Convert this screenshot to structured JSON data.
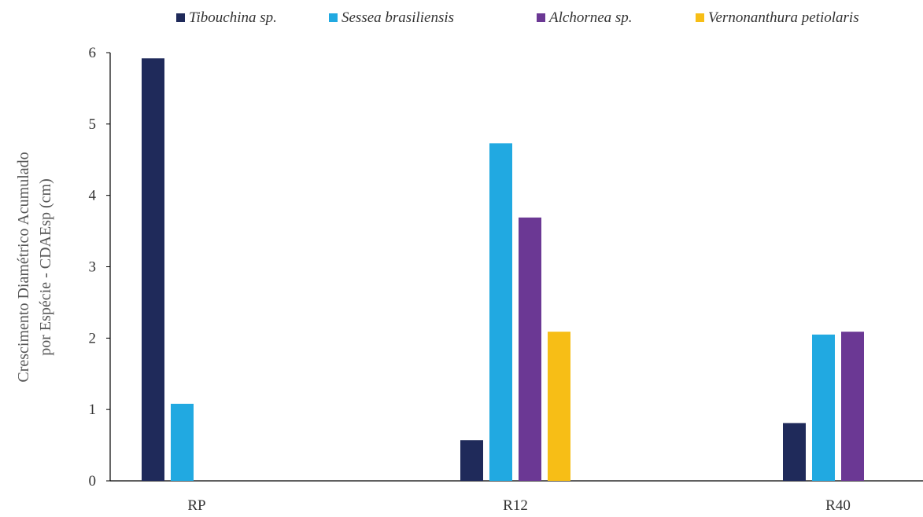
{
  "chart_data": {
    "type": "bar",
    "title": "",
    "xlabel": "",
    "ylabel_lines": [
      "Crescimento Diamétrico Acumulado",
      "por Espécie - CDAEsp (cm)"
    ],
    "ylim": [
      0,
      6
    ],
    "yticks": [
      0,
      1,
      2,
      3,
      4,
      5,
      6
    ],
    "categories": [
      "RP",
      "R12",
      "R40"
    ],
    "legend_position": "top",
    "grid": false,
    "series": [
      {
        "name": "Tibouchina sp.",
        "color": "#1f2a5a",
        "values": [
          5.92,
          0.57,
          0.81
        ]
      },
      {
        "name": "Sessea brasiliensis",
        "color": "#21a9e1",
        "values": [
          1.08,
          4.73,
          2.05
        ]
      },
      {
        "name": "Alchornea sp.",
        "color": "#6b3894",
        "values": [
          null,
          3.69,
          2.09
        ]
      },
      {
        "name": "Vernonanthura petiolaris",
        "color": "#f7be16",
        "values": [
          null,
          2.09,
          null
        ]
      }
    ]
  }
}
